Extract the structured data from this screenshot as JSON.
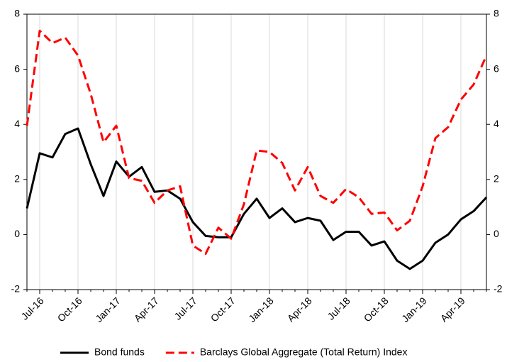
{
  "chart_data": {
    "type": "line",
    "categories": [
      null,
      "Jul-16",
      null,
      null,
      "Oct-16",
      null,
      null,
      "Jan-17",
      null,
      null,
      "Apr-17",
      null,
      null,
      "Jul-17",
      null,
      null,
      "Oct-17",
      null,
      null,
      "Jan-18",
      null,
      null,
      "Apr-18",
      null,
      null,
      "Jul-18",
      null,
      null,
      "Oct-18",
      null,
      null,
      "Jan-19",
      null,
      null,
      "Apr-19",
      null,
      null
    ],
    "series": [
      {
        "name": "Bond funds",
        "color": "#000000",
        "dash": false,
        "values": [
          0.95,
          2.95,
          2.8,
          3.65,
          3.85,
          2.55,
          1.4,
          2.65,
          2.1,
          2.45,
          1.55,
          1.6,
          1.3,
          0.45,
          -0.05,
          -0.1,
          -0.1,
          0.75,
          1.3,
          0.6,
          0.95,
          0.45,
          0.6,
          0.5,
          -0.2,
          0.1,
          0.1,
          -0.4,
          -0.25,
          -0.95,
          -1.25,
          -0.95,
          -0.3,
          0.0,
          0.55,
          0.85,
          1.35
        ]
      },
      {
        "name": "Barclays Global Aggregate (Total Return) Index",
        "color": "#ff0000",
        "dash": true,
        "values": [
          3.95,
          7.4,
          6.95,
          7.15,
          6.5,
          5.1,
          3.35,
          3.95,
          2.05,
          1.95,
          1.15,
          1.6,
          1.75,
          -0.4,
          -0.7,
          0.25,
          -0.15,
          1.1,
          3.05,
          3.0,
          2.6,
          1.6,
          2.45,
          1.4,
          1.15,
          1.65,
          1.35,
          0.75,
          0.8,
          0.15,
          0.5,
          1.75,
          3.5,
          3.9,
          4.9,
          5.45,
          6.5
        ]
      }
    ],
    "ylim": [
      -2,
      8
    ],
    "yticks": [
      -2,
      0,
      2,
      4,
      6,
      8
    ],
    "y2lim": [
      -2,
      8
    ],
    "y2ticks": [
      -2,
      0,
      2,
      4,
      6,
      8
    ],
    "grid": "x",
    "legend": "bottom"
  }
}
